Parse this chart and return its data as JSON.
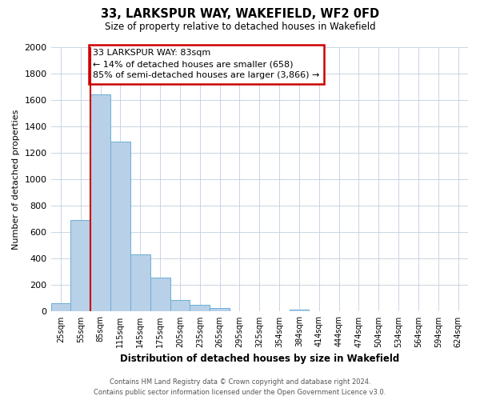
{
  "title": "33, LARKSPUR WAY, WAKEFIELD, WF2 0FD",
  "subtitle": "Size of property relative to detached houses in Wakefield",
  "xlabel": "Distribution of detached houses by size in Wakefield",
  "ylabel": "Number of detached properties",
  "bar_labels": [
    "25sqm",
    "55sqm",
    "85sqm",
    "115sqm",
    "145sqm",
    "175sqm",
    "205sqm",
    "235sqm",
    "265sqm",
    "295sqm",
    "325sqm",
    "354sqm",
    "384sqm",
    "414sqm",
    "444sqm",
    "474sqm",
    "504sqm",
    "534sqm",
    "564sqm",
    "594sqm",
    "624sqm"
  ],
  "bar_values": [
    65,
    695,
    1640,
    1285,
    435,
    255,
    90,
    50,
    25,
    0,
    0,
    0,
    15,
    0,
    0,
    0,
    0,
    0,
    0,
    0,
    0
  ],
  "bar_color": "#b8d0e8",
  "bar_edge_color": "#6baed6",
  "property_line_index": 2,
  "annotation_title": "33 LARKSPUR WAY: 83sqm",
  "annotation_line1": "← 14% of detached houses are smaller (658)",
  "annotation_line2": "85% of semi-detached houses are larger (3,866) →",
  "annotation_box_color": "#ffffff",
  "annotation_box_edge": "#cc0000",
  "line_color": "#cc0000",
  "ylim": [
    0,
    2000
  ],
  "yticks": [
    0,
    200,
    400,
    600,
    800,
    1000,
    1200,
    1400,
    1600,
    1800,
    2000
  ],
  "footer_line1": "Contains HM Land Registry data © Crown copyright and database right 2024.",
  "footer_line2": "Contains public sector information licensed under the Open Government Licence v3.0.",
  "background_color": "#ffffff",
  "grid_color": "#c0cfe0"
}
